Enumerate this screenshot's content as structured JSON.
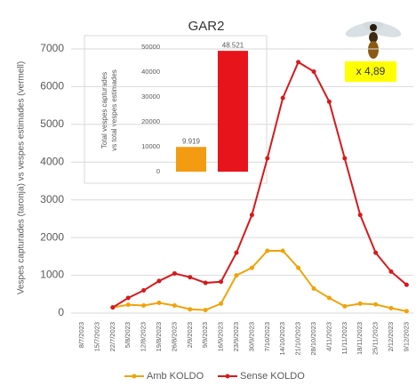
{
  "chart_data": [
    {
      "type": "line",
      "title": "GAR2",
      "y_label": "Vespes capturades (taronja) vs vespes estimades (vermell)",
      "categories": [
        "8/7/2023",
        "15/7/2023",
        "22/7/2023",
        "5/8/2023",
        "12/8/2023",
        "19/8/2023",
        "26/8/2023",
        "2/9/2023",
        "9/9/2023",
        "16/9/2023",
        "23/9/2023",
        "30/9/2023",
        "7/10/2023",
        "14/10/2023",
        "21/10/2023",
        "28/10/2023",
        "4/11/2023",
        "11/11/2023",
        "18/11/2023",
        "25/11/2023",
        "2/12/2023",
        "9/12/2023"
      ],
      "series": [
        {
          "name": "Amb KOLDO",
          "color": "#f0a30a",
          "values": [
            null,
            null,
            150,
            220,
            200,
            270,
            200,
            100,
            80,
            250,
            1000,
            1200,
            1650,
            1650,
            1200,
            650,
            400,
            180,
            250,
            230,
            130,
            50
          ]
        },
        {
          "name": "Sense KOLDO",
          "color": "#d7191c",
          "values": [
            null,
            null,
            150,
            400,
            600,
            850,
            1050,
            950,
            800,
            830,
            1600,
            2600,
            4100,
            5700,
            6650,
            6400,
            5600,
            4100,
            2600,
            1600,
            1100,
            750
          ]
        }
      ],
      "ylim": [
        0,
        7000
      ],
      "yticks": [
        0,
        1000,
        2000,
        3000,
        4000,
        5000,
        6000,
        7000
      ],
      "grid": true,
      "annotation": "x 4,89",
      "legend": "bottom"
    },
    {
      "type": "bar",
      "y_label": [
        "Total vespes capturades",
        "vs total vespes estimades"
      ],
      "values": [
        9919,
        48521
      ],
      "value_labels": [
        "9.919",
        "48.521"
      ],
      "colors": [
        "#f39c12",
        "#e8141b"
      ],
      "ylim": [
        0,
        50000
      ],
      "yticks": [
        0,
        10000,
        20000,
        30000,
        40000,
        50000
      ]
    }
  ]
}
